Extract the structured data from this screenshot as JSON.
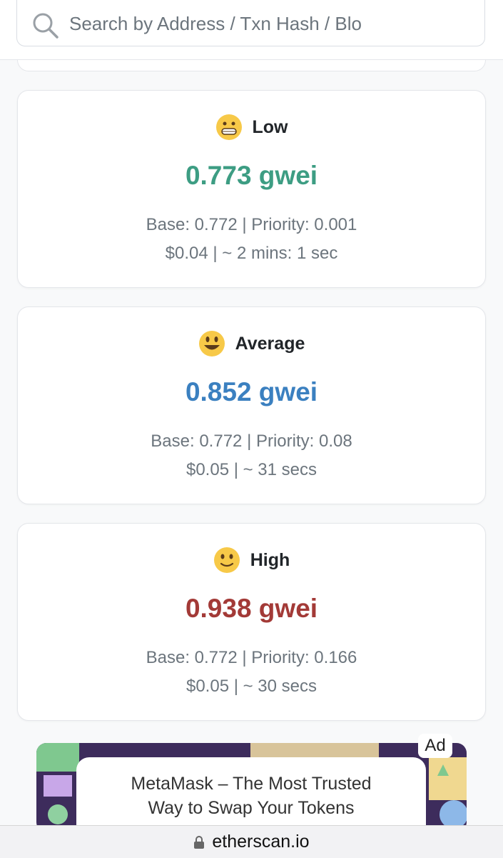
{
  "search": {
    "placeholder": "Search by Address / Txn Hash / Blo"
  },
  "cards": [
    {
      "label": "Low",
      "price": "0.773 gwei",
      "breakdown": "Base: 0.772 | Priority: 0.001",
      "cost": "$0.04 | ~ 2 mins: 1 sec"
    },
    {
      "label": "Average",
      "price": "0.852 gwei",
      "breakdown": "Base: 0.772 | Priority: 0.08",
      "cost": "$0.05 | ~ 31 secs"
    },
    {
      "label": "High",
      "price": "0.938 gwei",
      "breakdown": "Base: 0.772 | Priority: 0.166",
      "cost": "$0.05 | ~ 30 secs"
    }
  ],
  "ad": {
    "badge": "Ad",
    "text": "MetaMask – The Most Trusted Way to Swap Your Tokens"
  },
  "browser": {
    "url": "etherscan.io"
  }
}
